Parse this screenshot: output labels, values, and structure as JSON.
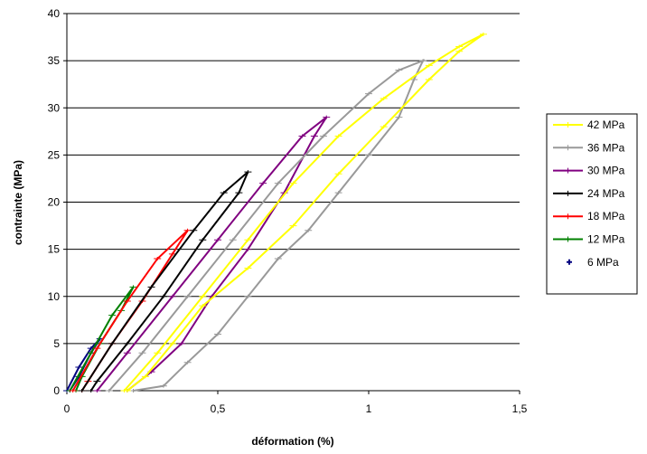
{
  "chart_data": {
    "type": "line",
    "xlabel": "déformation (%)",
    "ylabel": "contrainte (MPa)",
    "xlim": [
      0,
      1.5
    ],
    "ylim": [
      0,
      40
    ],
    "x_ticks": [
      "0",
      "0,5",
      "1",
      "1,5"
    ],
    "y_ticks": [
      "0",
      "5",
      "10",
      "15",
      "20",
      "25",
      "30",
      "35",
      "40"
    ],
    "grid": "horizontal",
    "legend_position": "right",
    "series": [
      {
        "name": "42 MPa",
        "color": "#ffff00",
        "marker": "+",
        "loading": [
          [
            0.19,
            0
          ],
          [
            0.3,
            4
          ],
          [
            0.45,
            10
          ],
          [
            0.6,
            16
          ],
          [
            0.75,
            22
          ],
          [
            0.9,
            27
          ],
          [
            1.05,
            31
          ],
          [
            1.2,
            34.5
          ],
          [
            1.3,
            36.5
          ],
          [
            1.38,
            37.8
          ]
        ],
        "unloading": [
          [
            1.38,
            37.8
          ],
          [
            1.3,
            36
          ],
          [
            1.2,
            33
          ],
          [
            1.05,
            28
          ],
          [
            0.9,
            23
          ],
          [
            0.75,
            17.5
          ],
          [
            0.6,
            13
          ],
          [
            0.45,
            9
          ],
          [
            0.35,
            5
          ],
          [
            0.26,
            1.5
          ],
          [
            0.2,
            0
          ]
        ]
      },
      {
        "name": "36 MPa",
        "color": "#999999",
        "marker": "+",
        "loading": [
          [
            0.14,
            0
          ],
          [
            0.25,
            4
          ],
          [
            0.4,
            10
          ],
          [
            0.55,
            16
          ],
          [
            0.7,
            22
          ],
          [
            0.85,
            27
          ],
          [
            1.0,
            31.5
          ],
          [
            1.1,
            34
          ],
          [
            1.18,
            35
          ]
        ],
        "unloading": [
          [
            1.18,
            35
          ],
          [
            1.15,
            33
          ],
          [
            1.1,
            29
          ],
          [
            1.0,
            25
          ],
          [
            0.9,
            21
          ],
          [
            0.8,
            17
          ],
          [
            0.7,
            14
          ],
          [
            0.6,
            10
          ],
          [
            0.5,
            6
          ],
          [
            0.4,
            3
          ],
          [
            0.32,
            0.5
          ],
          [
            0.22,
            0
          ]
        ]
      },
      {
        "name": "30 MPa",
        "color": "#800080",
        "marker": "+",
        "loading": [
          [
            0.1,
            0
          ],
          [
            0.2,
            4
          ],
          [
            0.35,
            10
          ],
          [
            0.5,
            16
          ],
          [
            0.65,
            22
          ],
          [
            0.78,
            27
          ],
          [
            0.86,
            29
          ]
        ],
        "unloading": [
          [
            0.86,
            29
          ],
          [
            0.82,
            27
          ],
          [
            0.72,
            21
          ],
          [
            0.6,
            15
          ],
          [
            0.48,
            10
          ],
          [
            0.38,
            5
          ],
          [
            0.28,
            2
          ],
          [
            0.2,
            0
          ]
        ]
      },
      {
        "name": "24 MPa",
        "color": "#000000",
        "marker": "+",
        "loading": [
          [
            0.05,
            0
          ],
          [
            0.15,
            5
          ],
          [
            0.28,
            11
          ],
          [
            0.42,
            17
          ],
          [
            0.52,
            21
          ],
          [
            0.6,
            23.2
          ]
        ],
        "unloading": [
          [
            0.6,
            23.2
          ],
          [
            0.57,
            21
          ],
          [
            0.45,
            16
          ],
          [
            0.32,
            10
          ],
          [
            0.2,
            5
          ],
          [
            0.1,
            1
          ],
          [
            0.08,
            0
          ]
        ]
      },
      {
        "name": "18 MPa",
        "color": "#ff0000",
        "marker": "+",
        "loading": [
          [
            0.02,
            0
          ],
          [
            0.1,
            4.5
          ],
          [
            0.2,
            9.5
          ],
          [
            0.3,
            14
          ],
          [
            0.4,
            17
          ]
        ],
        "unloading": [
          [
            0.4,
            17
          ],
          [
            0.35,
            14.5
          ],
          [
            0.25,
            9.5
          ],
          [
            0.15,
            5
          ],
          [
            0.07,
            1
          ],
          [
            0.05,
            0
          ]
        ]
      },
      {
        "name": "12 MPa",
        "color": "#008000",
        "marker": "+",
        "loading": [
          [
            0.01,
            0
          ],
          [
            0.08,
            4
          ],
          [
            0.15,
            8
          ],
          [
            0.22,
            11
          ]
        ],
        "unloading": [
          [
            0.22,
            11
          ],
          [
            0.18,
            8.5
          ],
          [
            0.11,
            5
          ],
          [
            0.05,
            1.5
          ],
          [
            0.03,
            0
          ]
        ]
      },
      {
        "name": "6 MPa",
        "color": "#000080",
        "marker": "+",
        "loading": [
          [
            0.0,
            0
          ],
          [
            0.04,
            2.5
          ],
          [
            0.08,
            4.5
          ],
          [
            0.11,
            5.5
          ]
        ],
        "unloading": [
          [
            0.11,
            5.5
          ],
          [
            0.08,
            4
          ],
          [
            0.04,
            1.5
          ],
          [
            0.01,
            0
          ]
        ]
      }
    ]
  }
}
